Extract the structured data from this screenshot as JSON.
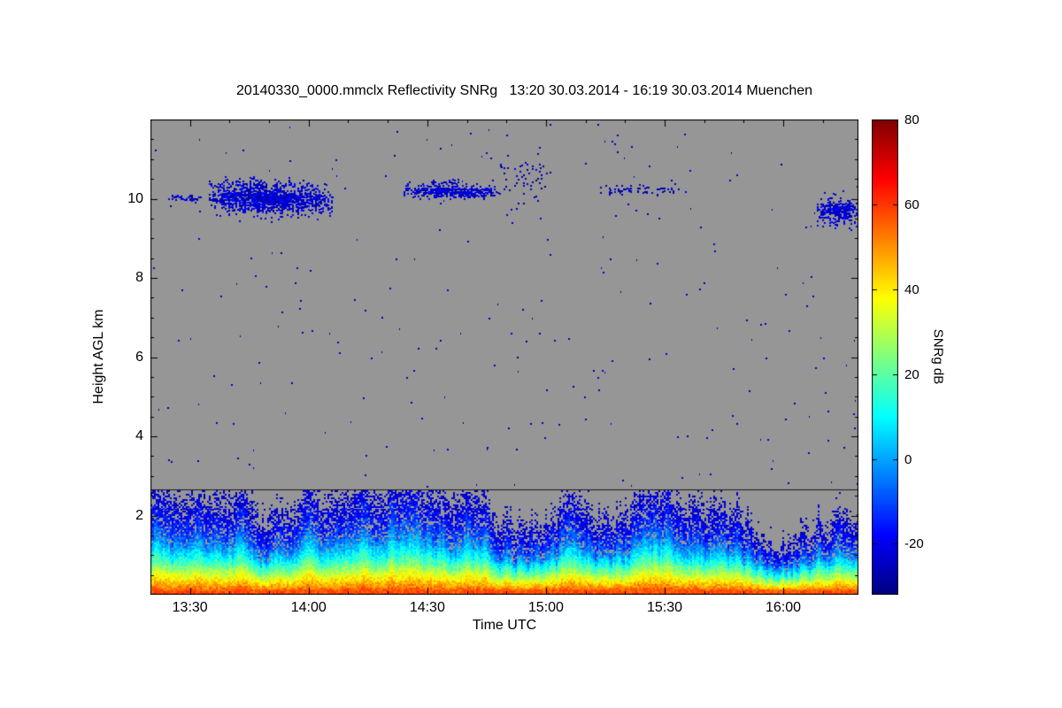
{
  "chart_data": {
    "type": "heatmap",
    "title": "20140330_0000.mmclx Reflectivity SNRg   13:20 30.03.2014 - 16:19 30.03.2014 Muenchen",
    "file": "20140330_0000.mmclx",
    "quantity": "Reflectivity SNRg",
    "time_span": "13:20 30.03.2014 - 16:19 30.03.2014",
    "station": "Muenchen",
    "xlabel": "Time UTC",
    "ylabel": "Height AGL km",
    "x_range_hours": [
      13.3333,
      16.3167
    ],
    "y_range_km": [
      0,
      12
    ],
    "x_ticks": [
      {
        "value": 13.5,
        "label": "13:30"
      },
      {
        "value": 14.0,
        "label": "14:00"
      },
      {
        "value": 14.5,
        "label": "14:30"
      },
      {
        "value": 15.0,
        "label": "15:00"
      },
      {
        "value": 15.5,
        "label": "15:30"
      },
      {
        "value": 16.0,
        "label": "16:00"
      }
    ],
    "x_minor_tick_hours": 0.166667,
    "y_ticks": [
      {
        "value": 2,
        "label": "2"
      },
      {
        "value": 4,
        "label": "4"
      },
      {
        "value": 6,
        "label": "6"
      },
      {
        "value": 8,
        "label": "8"
      },
      {
        "value": 10,
        "label": "10"
      }
    ],
    "y_minor_tick_km": 0.5,
    "colormap": "jet",
    "no_data_color": "#969696",
    "frame_color": "#000000",
    "colorbar": {
      "label": "SNRg dB",
      "min": -32,
      "max": 80,
      "ticks": [
        {
          "value": 80,
          "label": "80"
        },
        {
          "value": 60,
          "label": "60"
        },
        {
          "value": 40,
          "label": "40"
        },
        {
          "value": 20,
          "label": "20"
        },
        {
          "value": 0,
          "label": "0"
        },
        {
          "value": -20,
          "label": "-20"
        }
      ]
    },
    "features": {
      "horizontal_line_km": 2.65,
      "cloud_layers": [
        {
          "t0": 13.4,
          "t1": 13.55,
          "h_center": 10.05,
          "sigma_km": 0.05,
          "density": 0.5,
          "slope": 0,
          "snr_dB_range": [
            -30,
            -17
          ]
        },
        {
          "t0": 13.58,
          "t1": 14.1,
          "h_center": 10.02,
          "sigma_km": 0.2,
          "density": 1.0,
          "slope": -0.1,
          "snr_dB_range": [
            -30,
            -15
          ]
        },
        {
          "t0": 13.6,
          "t1": 13.84,
          "h_center": 10.4,
          "sigma_km": 0.07,
          "density": 0.3,
          "slope": 0,
          "snr_dB_range": [
            -30,
            -20
          ]
        },
        {
          "t0": 14.4,
          "t1": 14.8,
          "h_center": 10.2,
          "sigma_km": 0.09,
          "density": 0.9,
          "slope": 0,
          "snr_dB_range": [
            -30,
            -16
          ]
        },
        {
          "t0": 14.47,
          "t1": 14.64,
          "h_center": 10.44,
          "sigma_km": 0.05,
          "density": 0.25,
          "slope": 0,
          "snr_dB_range": [
            -30,
            -20
          ]
        },
        {
          "t0": 14.8,
          "t1": 15.02,
          "h_center": 10.5,
          "sigma_km": 0.25,
          "density": 0.1,
          "slope": 0,
          "snr_dB_range": [
            -30,
            -22
          ]
        },
        {
          "t0": 15.22,
          "t1": 15.6,
          "h_center": 10.25,
          "sigma_km": 0.07,
          "density": 0.22,
          "slope": 0,
          "snr_dB_range": [
            -30,
            -22
          ]
        },
        {
          "t0": 16.14,
          "t1": 16.3167,
          "h_center": 9.7,
          "sigma_km": 0.17,
          "density": 0.9,
          "slope": -0.05,
          "snr_dB_range": [
            -30,
            -16
          ]
        }
      ],
      "boundary_layer": {
        "top_km": 2.3,
        "profile_km_dB": [
          [
            0,
            58
          ],
          [
            0.1,
            54
          ],
          [
            0.2,
            47
          ],
          [
            0.35,
            37
          ],
          [
            0.5,
            27
          ],
          [
            0.7,
            16
          ],
          [
            0.9,
            5
          ],
          [
            1.1,
            -5
          ],
          [
            1.4,
            -14
          ],
          [
            1.8,
            -22
          ],
          [
            2.2,
            -28
          ],
          [
            2.6,
            -33
          ]
        ],
        "noise_dB": 6,
        "min_visible_dB": -26,
        "ground_band_dB_range": [
          50,
          59
        ]
      },
      "isolated_noise_speckles": {
        "count": 260,
        "h_min_km": 2.75,
        "h_max_km": 11.9,
        "snr_dB_range": [
          -30,
          -20
        ]
      }
    }
  }
}
